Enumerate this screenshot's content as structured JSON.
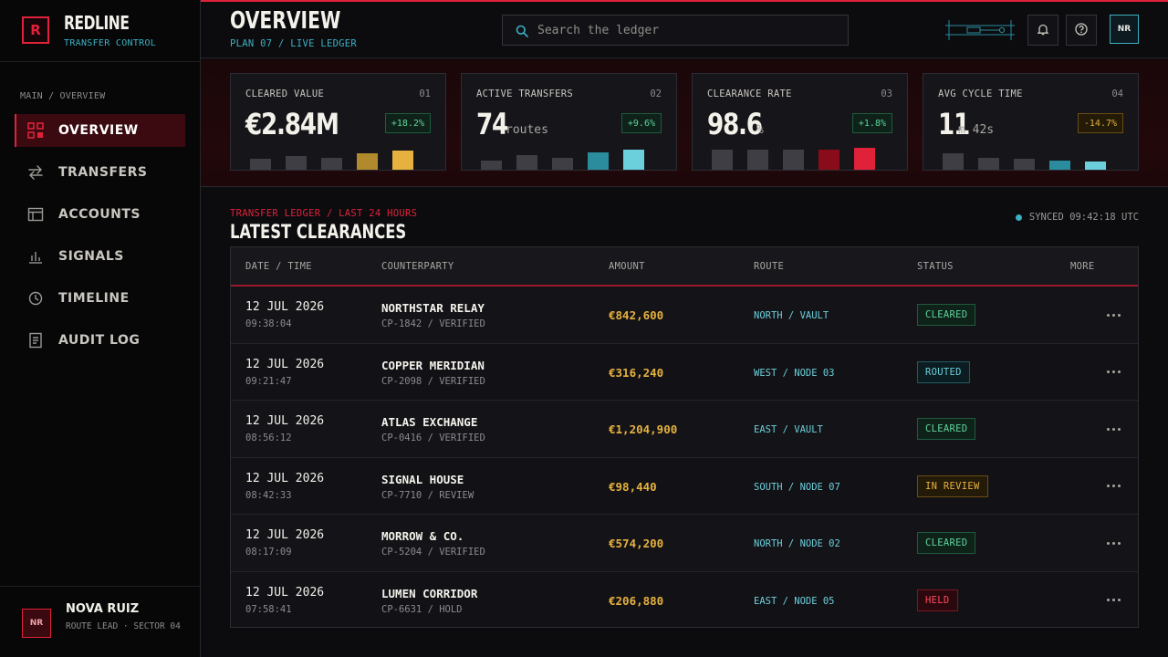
{
  "brand": {
    "logo_letter": "R",
    "name": "REDLINE",
    "subtitle": "TRANSFER CONTROL",
    "accent": "#e0213a",
    "cyan": "#3bb0c3"
  },
  "sidebar": {
    "breadcrumb": "MAIN / OVERVIEW",
    "items": [
      {
        "label": "OVERVIEW",
        "icon": "grid-icon",
        "active": true
      },
      {
        "label": "TRANSFERS",
        "icon": "swap-arrows-icon",
        "active": false
      },
      {
        "label": "ACCOUNTS",
        "icon": "table-icon",
        "active": false
      },
      {
        "label": "SIGNALS",
        "icon": "bar-chart-icon",
        "active": false
      },
      {
        "label": "TIMELINE",
        "icon": "clock-icon",
        "active": false
      },
      {
        "label": "AUDIT LOG",
        "icon": "document-icon",
        "active": false
      }
    ],
    "user": {
      "initials": "NR",
      "name": "NOVA RUIZ",
      "role": "ROUTE LEAD · SECTOR 04"
    }
  },
  "header": {
    "title": "OVERVIEW",
    "subtitle": "PLAN 07 / LIVE LEDGER",
    "search_placeholder": "Search the ledger",
    "avatar_initials": "NR"
  },
  "kpis": [
    {
      "label": "CLEARED VALUE",
      "index": "01",
      "value": "€2.84M",
      "unit": "",
      "delta": "+18.2%",
      "trend": "up",
      "bars": [
        0.45,
        0.55,
        0.5,
        0.65,
        0.75
      ],
      "bar_colors": [
        "#3e3e44",
        "#3e3e44",
        "#3e3e44",
        "#b08a2c",
        "#e6b13e"
      ]
    },
    {
      "label": "ACTIVE TRANSFERS",
      "index": "02",
      "value": "74",
      "unit": "routes",
      "delta": "+9.6%",
      "trend": "up",
      "bars": [
        0.4,
        0.6,
        0.5,
        0.7,
        0.8
      ],
      "bar_colors": [
        "#3e3e44",
        "#3e3e44",
        "#3e3e44",
        "#2a8c9c",
        "#6ccfdc"
      ]
    },
    {
      "label": "CLEARANCE RATE",
      "index": "03",
      "value": "98.6",
      "unit": "%",
      "delta": "+1.8%",
      "trend": "up",
      "bars": [
        0.8,
        0.8,
        0.8,
        0.8,
        0.85
      ],
      "bar_colors": [
        "#3e3e44",
        "#3e3e44",
        "#3e3e44",
        "#8a0c1a",
        "#e0213a"
      ]
    },
    {
      "label": "AVG CYCLE TIME",
      "index": "04",
      "value": "11",
      "unit": "m 42s",
      "delta": "-14.7%",
      "trend": "down",
      "bars": [
        0.65,
        0.5,
        0.45,
        0.4,
        0.35
      ],
      "bar_colors": [
        "#3e3e44",
        "#3e3e44",
        "#3e3e44",
        "#2a8c9c",
        "#6ccfdc"
      ]
    }
  ],
  "ledger": {
    "kicker": "TRANSFER LEDGER / LAST 24 HOURS",
    "title": "LATEST CLEARANCES",
    "synced": "SYNCED 09:42:18 UTC",
    "columns": [
      "DATE / TIME",
      "COUNTERPARTY",
      "AMOUNT",
      "ROUTE",
      "STATUS",
      "MORE"
    ],
    "rows": [
      {
        "date": "12 JUL 2026",
        "time": "09:38:04",
        "party": "NORTHSTAR RELAY",
        "cp": "CP-1842 / VERIFIED",
        "amount": "€842,600",
        "route": "NORTH / VAULT",
        "status": "CLEARED",
        "status_kind": "cleared"
      },
      {
        "date": "12 JUL 2026",
        "time": "09:21:47",
        "party": "COPPER MERIDIAN",
        "cp": "CP-2098 / VERIFIED",
        "amount": "€316,240",
        "route": "WEST / NODE 03",
        "status": "ROUTED",
        "status_kind": "routed"
      },
      {
        "date": "12 JUL 2026",
        "time": "08:56:12",
        "party": "ATLAS EXCHANGE",
        "cp": "CP-0416 / VERIFIED",
        "amount": "€1,204,900",
        "route": "EAST / VAULT",
        "status": "CLEARED",
        "status_kind": "cleared"
      },
      {
        "date": "12 JUL 2026",
        "time": "08:42:33",
        "party": "SIGNAL HOUSE",
        "cp": "CP-7710 / REVIEW",
        "amount": "€98,440",
        "route": "SOUTH / NODE 07",
        "status": "IN REVIEW",
        "status_kind": "review"
      },
      {
        "date": "12 JUL 2026",
        "time": "08:17:09",
        "party": "MORROW & CO.",
        "cp": "CP-5204 / VERIFIED",
        "amount": "€574,200",
        "route": "NORTH / NODE 02",
        "status": "CLEARED",
        "status_kind": "cleared"
      },
      {
        "date": "12 JUL 2026",
        "time": "07:58:41",
        "party": "LUMEN CORRIDOR",
        "cp": "CP-6631 / HOLD",
        "amount": "€206,880",
        "route": "EAST / NODE 05",
        "status": "HELD",
        "status_kind": "held"
      }
    ]
  }
}
